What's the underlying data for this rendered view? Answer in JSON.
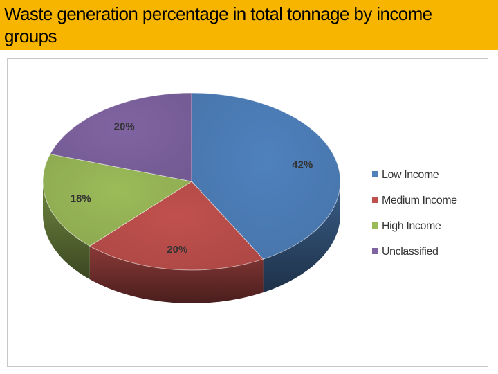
{
  "header": {
    "title": "Waste generation percentage in total tonnage by income groups",
    "background": "#f7b500"
  },
  "chart_data": {
    "type": "pie",
    "title": "",
    "categories": [
      "Low Income",
      "Medium Income",
      "High Income",
      "Unclassified"
    ],
    "values": [
      42,
      20,
      18,
      20
    ],
    "labels": [
      "42%",
      "20%",
      "18%",
      "20%"
    ],
    "colors": [
      "#4f81bd",
      "#c0504d",
      "#9bbb59",
      "#8064a2"
    ],
    "style": "3d",
    "legend_position": "right"
  }
}
